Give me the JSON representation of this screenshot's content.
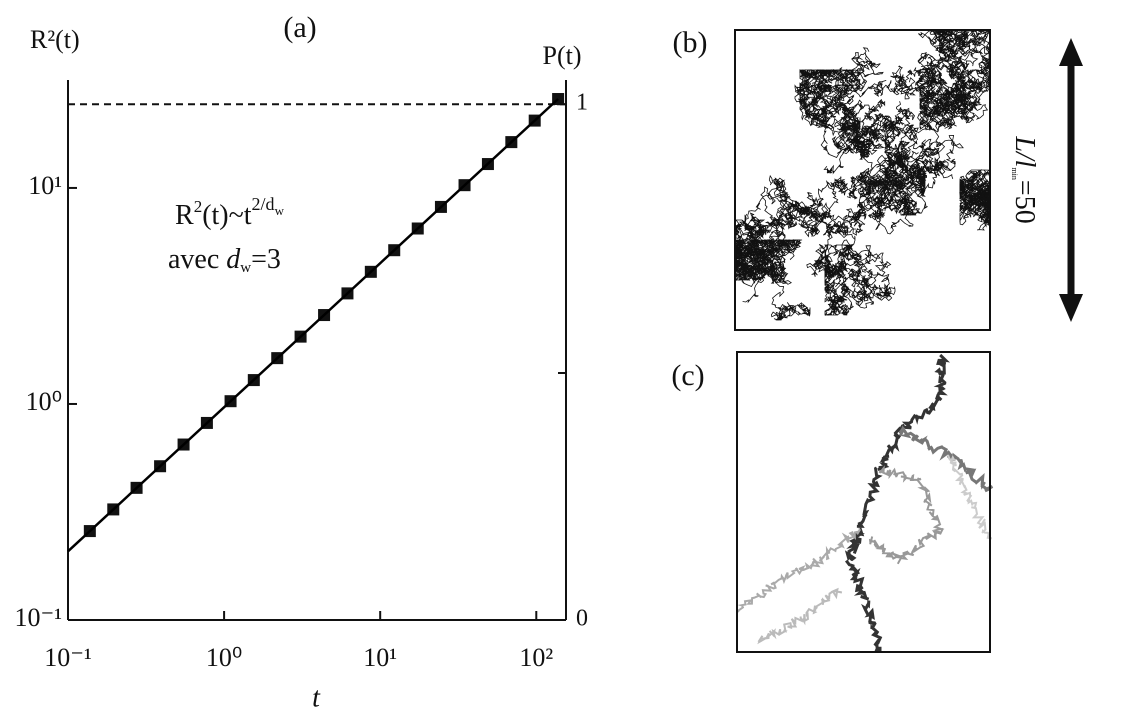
{
  "chart_data": {
    "type": "scatter",
    "title": "(a)",
    "xlabel": "t",
    "ylabel": "R²(t)",
    "y2label": "P(t)",
    "xscale": "log",
    "yscale": "log",
    "xlim": [
      0.1,
      155
    ],
    "ylim": [
      0.1,
      31.6
    ],
    "y2lim": [
      0,
      1.047
    ],
    "xticks": [
      {
        "value": 0.1,
        "label": "10⁻¹"
      },
      {
        "value": 1,
        "label": "10⁰"
      },
      {
        "value": 10,
        "label": "10¹"
      },
      {
        "value": 100,
        "label": "10²"
      }
    ],
    "yticks": [
      {
        "value": 0.1,
        "label": "10⁻¹"
      },
      {
        "value": 1,
        "label": "10⁰"
      },
      {
        "value": 10,
        "label": "10¹"
      }
    ],
    "y2ticks": [
      0,
      1
    ],
    "series": [
      {
        "style": "markers",
        "color": "#111111",
        "x": [
          0.138,
          0.195,
          0.275,
          0.389,
          0.55,
          0.776,
          1.1,
          1.55,
          2.19,
          3.09,
          4.37,
          6.17,
          8.71,
          12.3,
          17.4,
          24.5,
          34.7,
          49.0,
          69.2,
          97.7,
          138
        ],
        "values": [
          0.258,
          0.325,
          0.409,
          0.515,
          0.649,
          0.817,
          1.03,
          1.29,
          1.63,
          2.05,
          2.58,
          3.25,
          4.09,
          5.15,
          6.49,
          8.17,
          10.3,
          12.9,
          16.3,
          20.5,
          25.8
        ]
      },
      {
        "style": "line",
        "color": "#000000",
        "x": [
          0.1,
          138
        ],
        "values": [
          0.208,
          25.8
        ]
      }
    ],
    "reference_line": {
      "axis": "y2",
      "value": 1,
      "style": "dashed"
    },
    "formula": {
      "base": "R",
      "sup": "2",
      "mid": "(t)~t",
      "exp": "2/d",
      "exp_sub": "w"
    },
    "note": {
      "text": "avec ",
      "var": "d",
      "sub": "w",
      "rest": "=3"
    }
  },
  "panels": [
    {
      "label": "(b)"
    },
    {
      "label": "(c)"
    }
  ],
  "size_label": {
    "text": "L/l",
    "sub": "min",
    "rest": "=50"
  }
}
